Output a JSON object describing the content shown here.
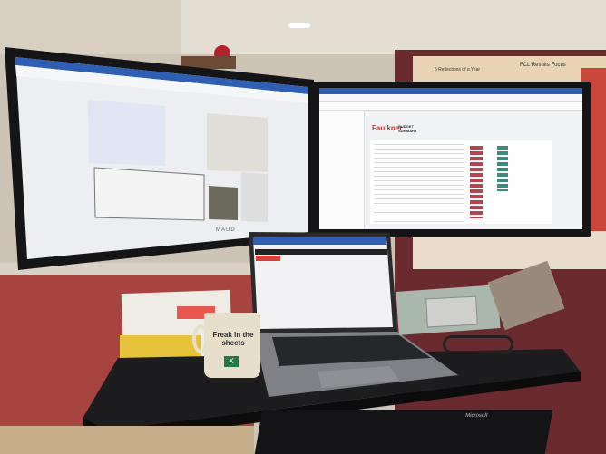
{
  "scene": {
    "colors": {
      "wall": "#cdc4b6",
      "cabinet": "#a8443f",
      "pinboard": "#6b2a2e",
      "desk": "#1d1d1f",
      "screen": "#eceef2",
      "accent_red": "#c23b3b",
      "excel_green": "#1f7a45"
    }
  },
  "left_monitor": {
    "brand": "MAUD"
  },
  "right_monitor": {
    "logo": "Faulkner",
    "report_title": "BUDGET SUMMARY"
  },
  "posters": {
    "left": "5 Reflections of a Year",
    "right": "FCL Results Focus"
  },
  "mug": {
    "text": "Freak in the sheets",
    "logo": "X"
  },
  "keyboard": {
    "brand": "Microsoft"
  }
}
